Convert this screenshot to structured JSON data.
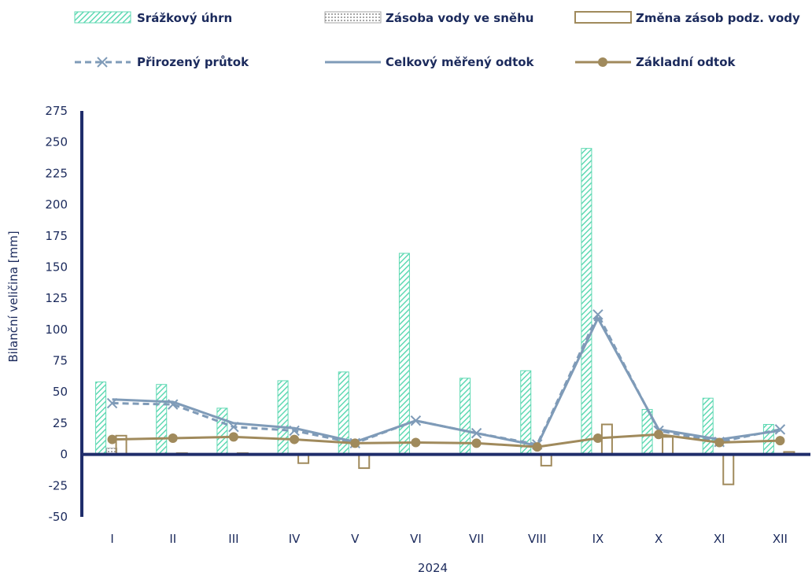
{
  "chart_data": {
    "type": "bar",
    "categories": [
      "I",
      "II",
      "III",
      "IV",
      "V",
      "VI",
      "VII",
      "VIII",
      "IX",
      "X",
      "XI",
      "XII"
    ],
    "xlabel": "2024",
    "ylabel": "Bilanční veličina [mm]",
    "ylim": [
      -50,
      275
    ],
    "yticks": [
      "275",
      "250",
      "225",
      "200",
      "175",
      "150",
      "125",
      "100",
      "75",
      "50",
      "25",
      "0",
      "-25",
      "-50"
    ],
    "grid": false,
    "legend_position": "top",
    "series": [
      {
        "name": "Srážkový úhrn",
        "kind": "bar-hatched",
        "color": "#5fd9b3",
        "values": [
          58,
          56,
          37,
          59,
          66,
          161,
          61,
          67,
          245,
          36,
          45,
          24
        ]
      },
      {
        "name": "Zásoba vody ve sněhu",
        "kind": "bar-dotted",
        "color": "#a6a6a6",
        "values": [
          5,
          1,
          0,
          0,
          0,
          0,
          0,
          0,
          0,
          0,
          0,
          0
        ]
      },
      {
        "name": "Změna zásob podz. vody",
        "kind": "bar-outline",
        "color": "#a08a5c",
        "values": [
          15,
          1,
          1,
          -7,
          -11,
          0,
          0,
          -9,
          24,
          14,
          -24,
          2
        ]
      },
      {
        "name": "Přirozený průtok",
        "kind": "line-dashed-x",
        "color": "#7f9bb8",
        "values": [
          41,
          40,
          22,
          19,
          9,
          27,
          17,
          8,
          112,
          19,
          10,
          20
        ]
      },
      {
        "name": "Celkový měřený odtok",
        "kind": "line",
        "color": "#7f9bb8",
        "values": [
          44,
          42,
          25,
          21,
          10,
          27,
          17,
          7,
          109,
          20,
          12,
          19
        ]
      },
      {
        "name": "Základní odtok",
        "kind": "line-dot",
        "color": "#a08a5c",
        "values": [
          12,
          13,
          14,
          12,
          9,
          9.5,
          9,
          6,
          13,
          16,
          9.5,
          11
        ]
      }
    ]
  }
}
